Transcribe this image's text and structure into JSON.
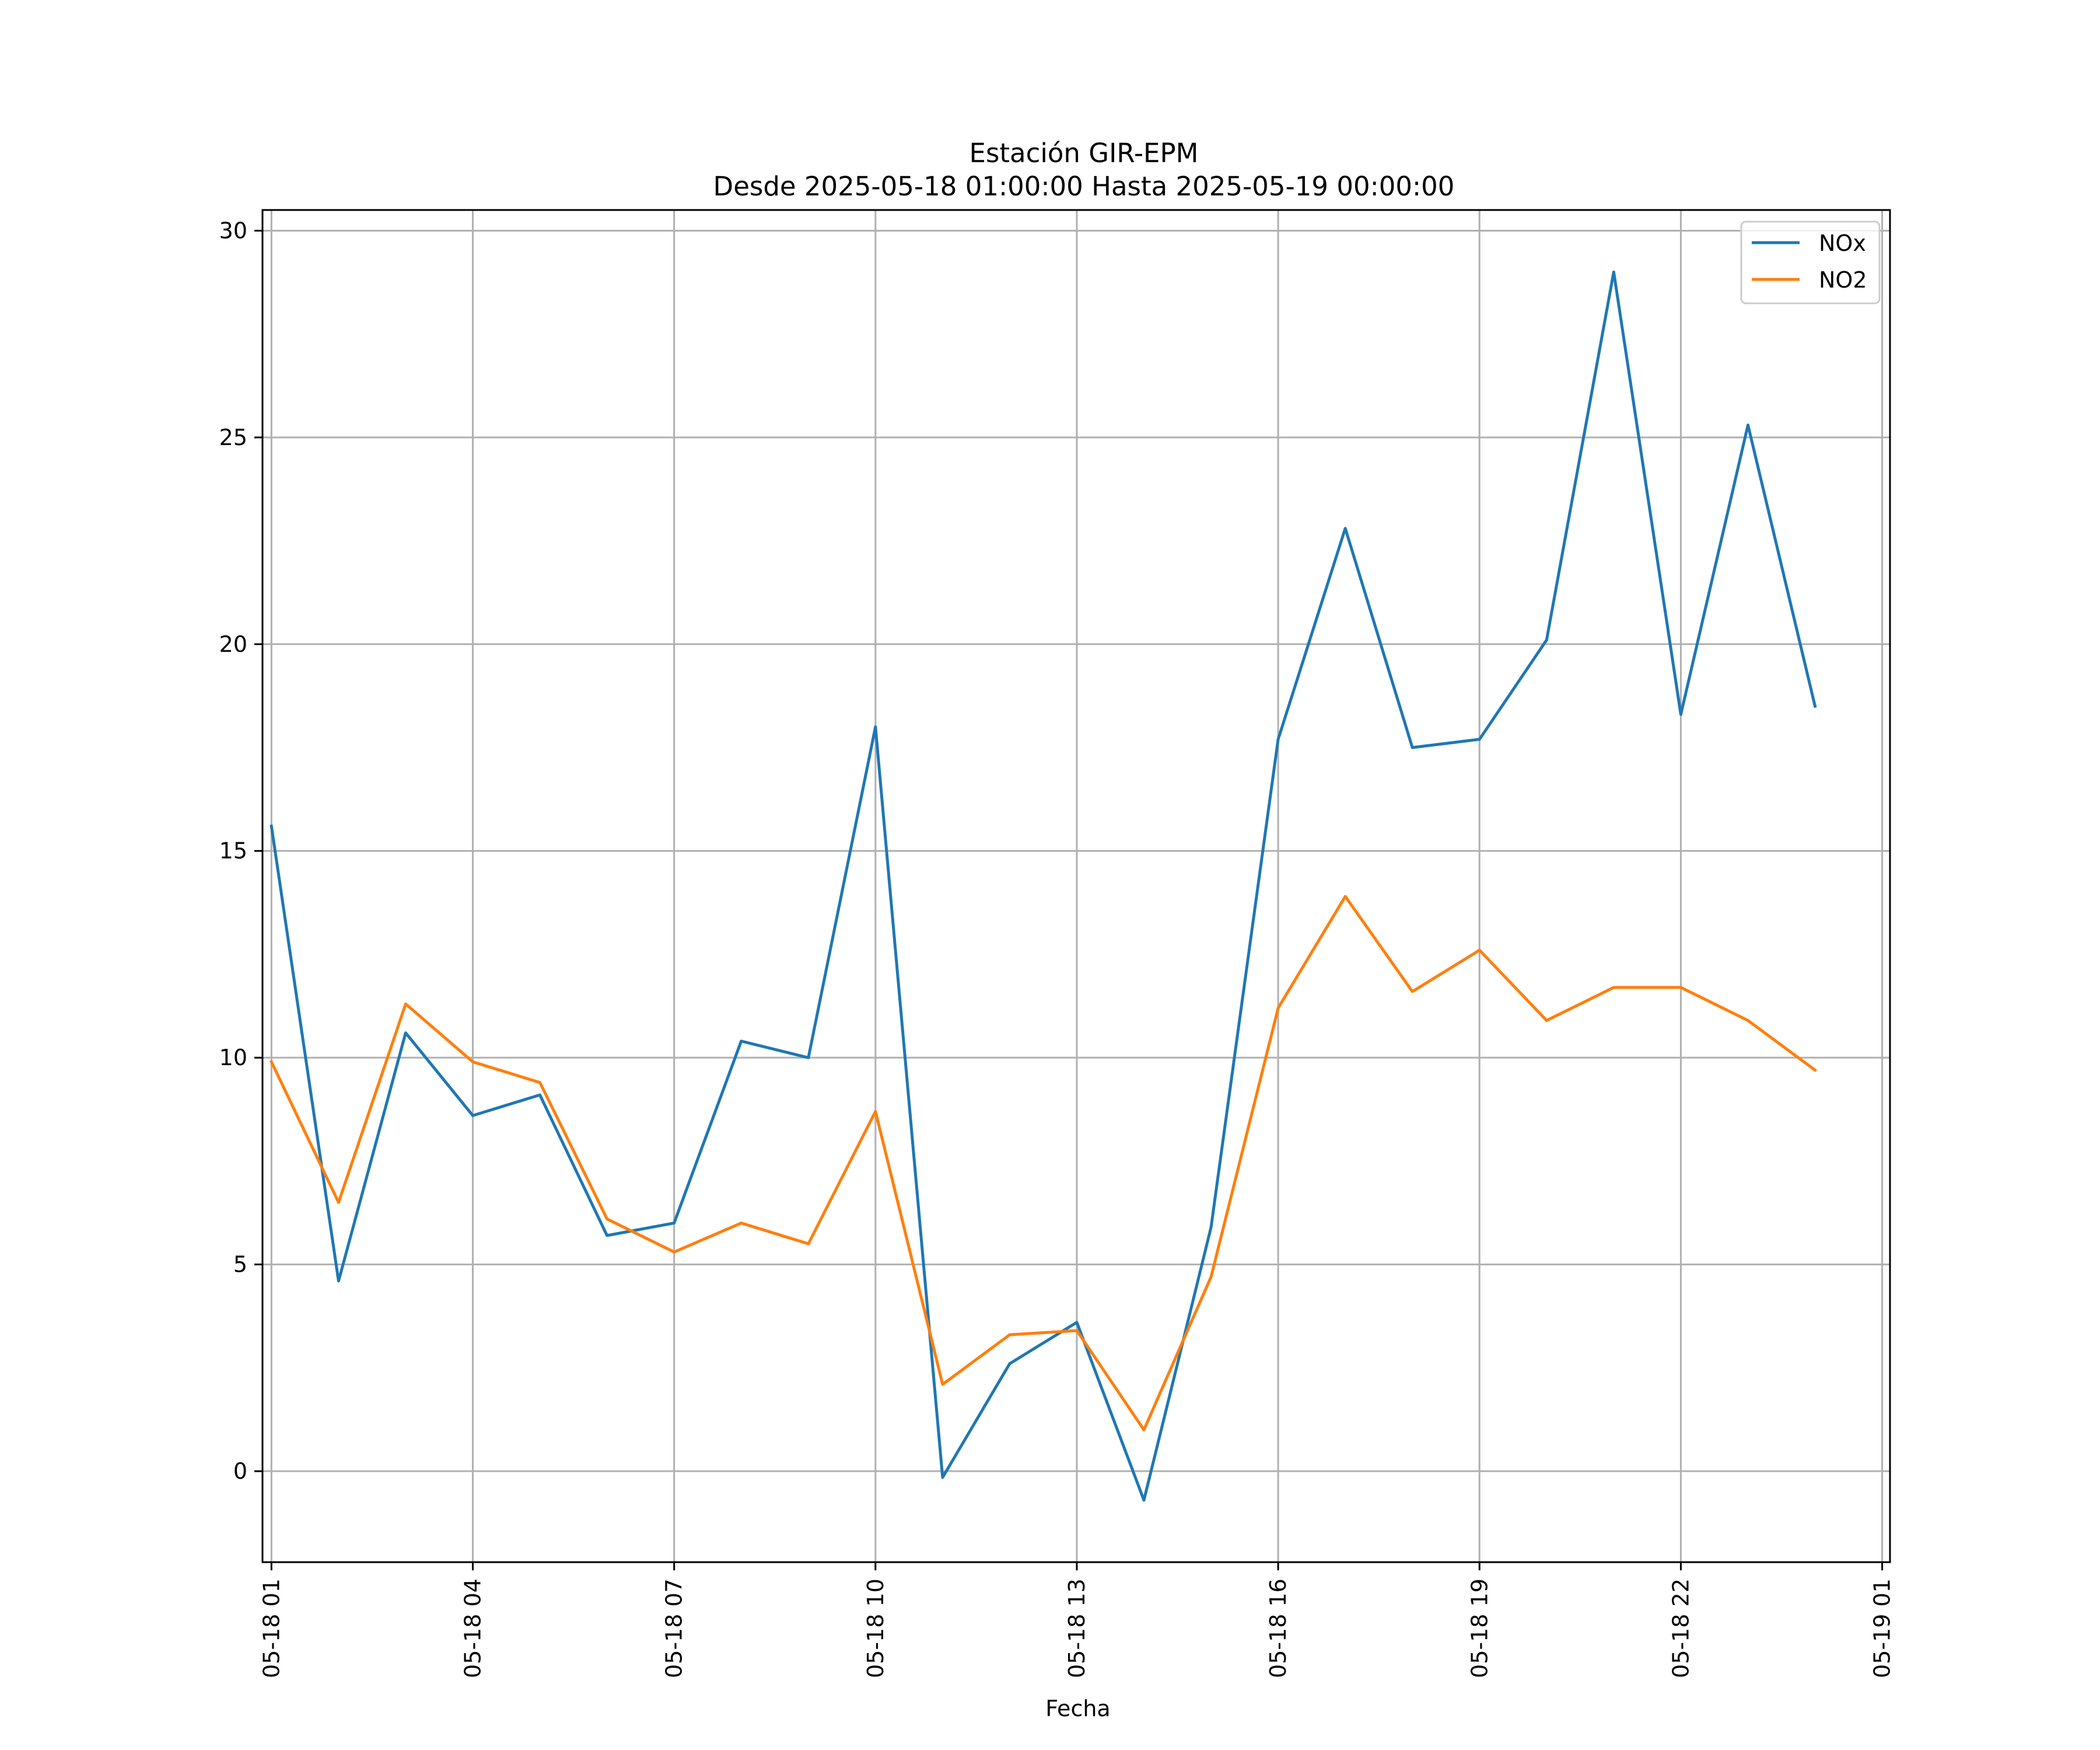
{
  "chart_data": {
    "type": "line",
    "title": "Estación GIR-EPM",
    "subtitle": "Desde 2025-05-18 01:00:00 Hasta 2025-05-19 00:00:00",
    "xlabel": "Fecha",
    "ylabel": "",
    "x": [
      "05-18 01",
      "05-18 02",
      "05-18 03",
      "05-18 04",
      "05-18 05",
      "05-18 06",
      "05-18 07",
      "05-18 08",
      "05-18 09",
      "05-18 10",
      "05-18 11",
      "05-18 12",
      "05-18 13",
      "05-18 14",
      "05-18 15",
      "05-18 16",
      "05-18 17",
      "05-18 18",
      "05-18 19",
      "05-18 20",
      "05-18 21",
      "05-18 22",
      "05-18 23",
      "05-19 00"
    ],
    "x_ticks": [
      "05-18 01",
      "05-18 04",
      "05-18 07",
      "05-18 10",
      "05-18 13",
      "05-18 16",
      "05-18 19",
      "05-18 22",
      "05-19 01"
    ],
    "xlim": [
      "05-18 00:52",
      "05-19 01:07"
    ],
    "ylim": [
      -2.2,
      30.5
    ],
    "y_ticks": [
      0,
      5,
      10,
      15,
      20,
      25,
      30
    ],
    "grid": true,
    "legend_position": "top-right",
    "series": [
      {
        "name": "NOx",
        "color": "#1f77b4",
        "values": [
          15.6,
          4.6,
          10.6,
          8.6,
          9.1,
          5.7,
          6.0,
          10.4,
          10.0,
          18.0,
          -0.15,
          2.6,
          3.6,
          -0.7,
          5.9,
          17.7,
          22.8,
          17.5,
          17.7,
          20.1,
          29.0,
          18.3,
          25.3,
          18.5
        ]
      },
      {
        "name": "NO2",
        "color": "#ff7f0e",
        "values": [
          9.9,
          6.5,
          11.3,
          9.9,
          9.4,
          6.1,
          5.3,
          6.0,
          5.5,
          8.7,
          2.1,
          3.3,
          3.4,
          1.0,
          4.7,
          11.2,
          13.9,
          11.6,
          12.6,
          10.9,
          11.7,
          11.7,
          10.9,
          9.7
        ]
      }
    ]
  }
}
